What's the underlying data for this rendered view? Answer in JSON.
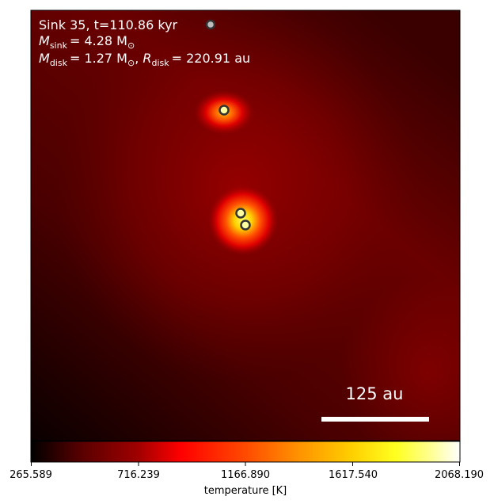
{
  "annotation": {
    "sink_line": "Sink 35, t=110.86 kyr",
    "m_sink_symbol": "M",
    "m_sink_sub": "sink",
    "m_sink_value": "= 4.28 M",
    "m_disk_symbol": "M",
    "m_disk_sub": "disk",
    "m_disk_value": "= 1.27 M",
    "r_disk_symbol": "R",
    "r_disk_sub": "disk",
    "r_disk_value": "= 220.91 au",
    "sun_symbol": "⊙"
  },
  "scale_bar": {
    "label": "125 au"
  },
  "colorbar": {
    "label": "temperature [K]",
    "ticks": [
      "265.589",
      "716.239",
      "1166.890",
      "1617.540",
      "2068.190"
    ],
    "colormap": [
      "#000000",
      "#5a0000",
      "#a00000",
      "#e00000",
      "#ff3000",
      "#ff7a00",
      "#ffc000",
      "#ffff20",
      "#ffffc0",
      "#ffffff"
    ]
  },
  "sinks": [
    {
      "name": "sink-legend",
      "style": "grey"
    },
    {
      "name": "sink-upper",
      "style": "yellow"
    },
    {
      "name": "sink-lower-a",
      "style": "yellow"
    },
    {
      "name": "sink-lower-b",
      "style": "yellow"
    }
  ],
  "colors": {
    "background_dark": "#1a0000",
    "background_mid": "#6a0000",
    "hot_core": "#ffff40"
  }
}
